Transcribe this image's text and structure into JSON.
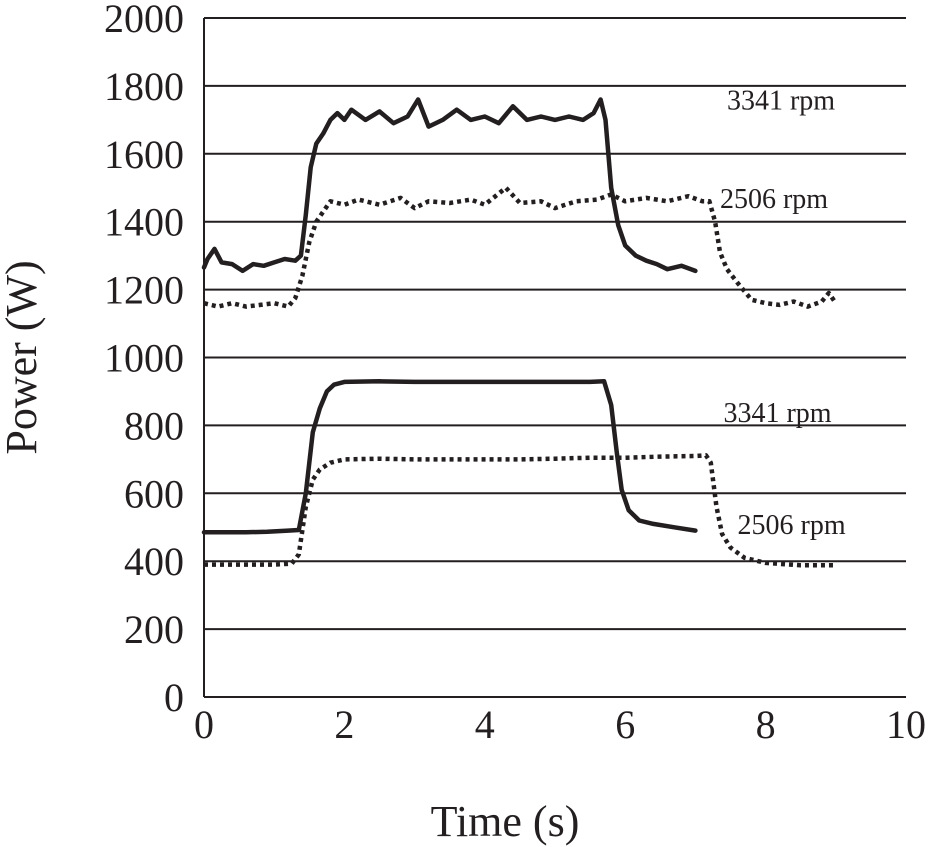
{
  "chart_data": {
    "type": "line",
    "title": "",
    "xlabel": "Time (s)",
    "ylabel": "Power (W)",
    "xlim": [
      0,
      10
    ],
    "ylim": [
      0,
      2000
    ],
    "x_ticks": [
      "0",
      "2",
      "4",
      "6",
      "8",
      "10"
    ],
    "y_ticks": [
      "0",
      "200",
      "400",
      "600",
      "800",
      "1000",
      "1200",
      "1400",
      "1600",
      "1800",
      "2000"
    ],
    "grid": "horizontal",
    "legend": "none",
    "colors": {
      "ink": "#231f20",
      "background": "#ffffff"
    },
    "series": [
      {
        "name": "3341 rpm",
        "style": "solid",
        "points": [
          [
            0,
            1265
          ],
          [
            0.05,
            1290
          ],
          [
            0.15,
            1320
          ],
          [
            0.25,
            1280
          ],
          [
            0.4,
            1275
          ],
          [
            0.55,
            1255
          ],
          [
            0.7,
            1275
          ],
          [
            0.85,
            1270
          ],
          [
            1.0,
            1280
          ],
          [
            1.15,
            1290
          ],
          [
            1.3,
            1285
          ],
          [
            1.38,
            1300
          ],
          [
            1.45,
            1420
          ],
          [
            1.52,
            1560
          ],
          [
            1.6,
            1630
          ],
          [
            1.7,
            1660
          ],
          [
            1.8,
            1700
          ],
          [
            1.9,
            1720
          ],
          [
            2.0,
            1700
          ],
          [
            2.1,
            1730
          ],
          [
            2.3,
            1700
          ],
          [
            2.5,
            1725
          ],
          [
            2.7,
            1690
          ],
          [
            2.9,
            1710
          ],
          [
            3.05,
            1760
          ],
          [
            3.2,
            1680
          ],
          [
            3.4,
            1700
          ],
          [
            3.6,
            1730
          ],
          [
            3.8,
            1700
          ],
          [
            4.0,
            1710
          ],
          [
            4.2,
            1690
          ],
          [
            4.4,
            1740
          ],
          [
            4.6,
            1700
          ],
          [
            4.8,
            1710
          ],
          [
            5.0,
            1700
          ],
          [
            5.2,
            1710
          ],
          [
            5.4,
            1700
          ],
          [
            5.55,
            1720
          ],
          [
            5.65,
            1760
          ],
          [
            5.72,
            1700
          ],
          [
            5.8,
            1500
          ],
          [
            5.9,
            1390
          ],
          [
            6.0,
            1330
          ],
          [
            6.15,
            1300
          ],
          [
            6.3,
            1285
          ],
          [
            6.45,
            1275
          ],
          [
            6.6,
            1260
          ],
          [
            6.8,
            1270
          ],
          [
            7.0,
            1255
          ]
        ]
      },
      {
        "name": "2506 rpm",
        "style": "dotted",
        "points": [
          [
            0,
            1160
          ],
          [
            0.2,
            1150
          ],
          [
            0.4,
            1160
          ],
          [
            0.6,
            1150
          ],
          [
            0.8,
            1155
          ],
          [
            1.0,
            1160
          ],
          [
            1.2,
            1150
          ],
          [
            1.3,
            1175
          ],
          [
            1.4,
            1240
          ],
          [
            1.5,
            1340
          ],
          [
            1.6,
            1400
          ],
          [
            1.7,
            1430
          ],
          [
            1.8,
            1460
          ],
          [
            2.0,
            1450
          ],
          [
            2.2,
            1465
          ],
          [
            2.5,
            1450
          ],
          [
            2.8,
            1470
          ],
          [
            3.0,
            1440
          ],
          [
            3.2,
            1460
          ],
          [
            3.5,
            1455
          ],
          [
            3.8,
            1465
          ],
          [
            4.0,
            1450
          ],
          [
            4.3,
            1500
          ],
          [
            4.5,
            1455
          ],
          [
            4.8,
            1460
          ],
          [
            5.0,
            1440
          ],
          [
            5.3,
            1460
          ],
          [
            5.6,
            1465
          ],
          [
            5.8,
            1480
          ],
          [
            6.0,
            1460
          ],
          [
            6.3,
            1470
          ],
          [
            6.6,
            1460
          ],
          [
            6.9,
            1475
          ],
          [
            7.1,
            1460
          ],
          [
            7.2,
            1460
          ],
          [
            7.28,
            1400
          ],
          [
            7.35,
            1310
          ],
          [
            7.45,
            1260
          ],
          [
            7.6,
            1220
          ],
          [
            7.8,
            1170
          ],
          [
            8.0,
            1160
          ],
          [
            8.2,
            1155
          ],
          [
            8.4,
            1165
          ],
          [
            8.6,
            1150
          ],
          [
            8.8,
            1165
          ],
          [
            8.9,
            1190
          ],
          [
            9.0,
            1160
          ]
        ]
      },
      {
        "name": "3341 rpm",
        "style": "solid",
        "points": [
          [
            0,
            485
          ],
          [
            0.3,
            485
          ],
          [
            0.6,
            485
          ],
          [
            0.9,
            487
          ],
          [
            1.2,
            490
          ],
          [
            1.35,
            492
          ],
          [
            1.45,
            600
          ],
          [
            1.55,
            780
          ],
          [
            1.65,
            850
          ],
          [
            1.75,
            900
          ],
          [
            1.85,
            920
          ],
          [
            2.0,
            928
          ],
          [
            2.5,
            930
          ],
          [
            3.0,
            928
          ],
          [
            3.5,
            928
          ],
          [
            4.0,
            928
          ],
          [
            4.5,
            928
          ],
          [
            5.0,
            928
          ],
          [
            5.5,
            928
          ],
          [
            5.7,
            930
          ],
          [
            5.8,
            860
          ],
          [
            5.88,
            720
          ],
          [
            5.95,
            610
          ],
          [
            6.05,
            550
          ],
          [
            6.2,
            520
          ],
          [
            6.4,
            510
          ],
          [
            6.7,
            500
          ],
          [
            7.0,
            490
          ]
        ]
      },
      {
        "name": "2506 rpm",
        "style": "dotted",
        "points": [
          [
            0,
            390
          ],
          [
            0.5,
            390
          ],
          [
            1.0,
            390
          ],
          [
            1.25,
            393
          ],
          [
            1.35,
            420
          ],
          [
            1.45,
            560
          ],
          [
            1.55,
            640
          ],
          [
            1.65,
            670
          ],
          [
            1.8,
            690
          ],
          [
            2.0,
            700
          ],
          [
            2.5,
            702
          ],
          [
            3.0,
            700
          ],
          [
            3.5,
            700
          ],
          [
            4.0,
            700
          ],
          [
            4.5,
            700
          ],
          [
            5.0,
            702
          ],
          [
            5.5,
            705
          ],
          [
            6.0,
            705
          ],
          [
            6.5,
            708
          ],
          [
            7.0,
            710
          ],
          [
            7.15,
            712
          ],
          [
            7.22,
            690
          ],
          [
            7.3,
            560
          ],
          [
            7.38,
            480
          ],
          [
            7.5,
            440
          ],
          [
            7.7,
            410
          ],
          [
            8.0,
            395
          ],
          [
            8.5,
            388
          ],
          [
            9.0,
            388
          ]
        ]
      }
    ]
  }
}
